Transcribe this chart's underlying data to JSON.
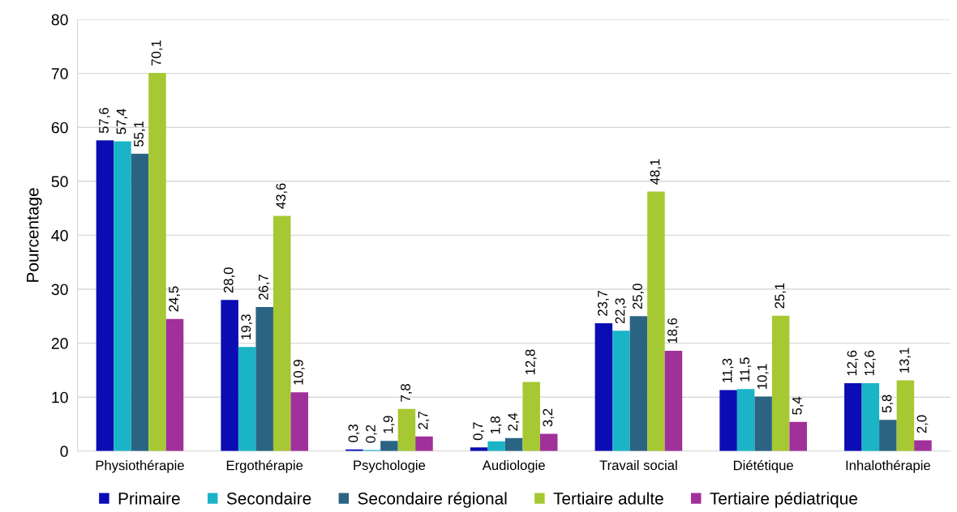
{
  "chart_data": {
    "type": "bar",
    "ylabel": "Pourcentage",
    "categories": [
      "Physiothérapie",
      "Ergothérapie",
      "Psychologie",
      "Audiologie",
      "Travail social",
      "Diététique",
      "Inhalothérapie"
    ],
    "series": [
      {
        "name": "Primaire",
        "color": "#0c0cb4",
        "values": [
          57.6,
          28.0,
          0.3,
          0.7,
          23.7,
          11.3,
          12.6
        ],
        "value_labels": [
          "57,6",
          "28,0",
          "0,3",
          "0,7",
          "23,7",
          "11,3",
          "12,6"
        ]
      },
      {
        "name": "Secondaire",
        "color": "#1ab4c6",
        "values": [
          57.4,
          19.3,
          0.2,
          1.8,
          22.3,
          11.5,
          12.6
        ],
        "value_labels": [
          "57,4",
          "19,3",
          "0,2",
          "1,8",
          "22,3",
          "11,5",
          "12,6"
        ]
      },
      {
        "name": "Secondaire régional",
        "color": "#2a6482",
        "values": [
          55.1,
          26.7,
          1.9,
          2.4,
          25.0,
          10.1,
          5.8
        ],
        "value_labels": [
          "55,1",
          "26,7",
          "1,9",
          "2,4",
          "25,0",
          "10,1",
          "5,8"
        ]
      },
      {
        "name": "Tertiaire adulte",
        "color": "#a6c832",
        "values": [
          70.1,
          43.6,
          7.8,
          12.8,
          48.1,
          25.1,
          13.1
        ],
        "value_labels": [
          "70,1",
          "43,6",
          "7,8",
          "12,8",
          "48,1",
          "25,1",
          "13,1"
        ]
      },
      {
        "name": "Tertiaire pédiatrique",
        "color": "#a0309a",
        "values": [
          24.5,
          10.9,
          2.7,
          3.2,
          18.6,
          5.4,
          2.0
        ],
        "value_labels": [
          "24,5",
          "10,9",
          "2,7",
          "3,2",
          "18,6",
          "5,4",
          "2,0"
        ]
      }
    ],
    "ylim": [
      0,
      80
    ],
    "yticks": [
      0,
      10,
      20,
      30,
      40,
      50,
      60,
      70,
      80
    ],
    "grid": "y",
    "legend": "bottom"
  }
}
